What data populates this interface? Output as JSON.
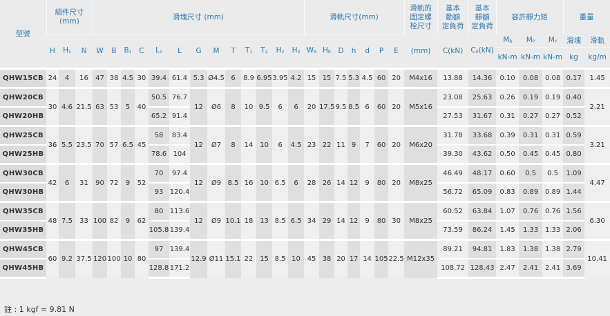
{
  "header": {
    "model": "型號",
    "assembly": "組件尺寸\n(mm)",
    "block": "滑塊尺寸 (mm)",
    "rail": "滑軌尺寸(mm)",
    "bolt": "滑軌的\n固定螺\n栓尺寸",
    "dyn": "基本\n動額\n定負荷",
    "stat": "基本\n靜額\n定負荷",
    "moment": "容許靜力矩",
    "weight": "重量",
    "bolt_unit": "(mm)",
    "dyn_unit": "C(kN)",
    "stat_unit_base": "C",
    "stat_unit_sub": "0",
    "stat_unit_tail": "(kN)",
    "moment_cols": [
      {
        "b": "M",
        "s": "R"
      },
      {
        "b": "M",
        "s": "P"
      },
      {
        "b": "M",
        "s": "Y"
      }
    ],
    "moment_unit": "kN-m",
    "weight_cols": [
      "滑塊",
      "滑軌"
    ],
    "weight_units": [
      "kg",
      "kg/m"
    ],
    "assembly_cols": [
      {
        "b": "H",
        "s": ""
      },
      {
        "b": "H",
        "s": "1"
      },
      {
        "b": "N",
        "s": ""
      }
    ],
    "block_cols": [
      {
        "b": "W",
        "s": ""
      },
      {
        "b": "B",
        "s": ""
      },
      {
        "b": "B",
        "s": "1"
      },
      {
        "b": "C",
        "s": ""
      },
      {
        "b": "L",
        "s": "1"
      },
      {
        "b": "L",
        "s": ""
      },
      {
        "b": "G",
        "s": ""
      },
      {
        "b": "M",
        "s": ""
      },
      {
        "b": "T",
        "s": ""
      },
      {
        "b": "T",
        "s": "1"
      },
      {
        "b": "T",
        "s": "2"
      },
      {
        "b": "H",
        "s": "2"
      },
      {
        "b": "H",
        "s": "3"
      }
    ],
    "rail_cols": [
      {
        "b": "W",
        "s": "R"
      },
      {
        "b": "H",
        "s": "R"
      },
      {
        "b": "D",
        "s": ""
      },
      {
        "b": "h",
        "s": ""
      },
      {
        "b": "d",
        "s": ""
      },
      {
        "b": "P",
        "s": ""
      },
      {
        "b": "E",
        "s": ""
      }
    ]
  },
  "groups": [
    {
      "shared": {
        "H": "24",
        "H1": "4",
        "N": "16",
        "W": "47",
        "B": "38",
        "B1": "4.5",
        "C": "30",
        "G": "5.3",
        "M": "Ø4.5",
        "T": "6",
        "T1": "8.9",
        "T2": "6.95",
        "H2": "3.95",
        "H3": "4.2",
        "WR": "15",
        "HR": "15",
        "D": "7.5",
        "h": "5.3",
        "d": "4.5",
        "P": "60",
        "E": "20",
        "bolt": "M4x16",
        "rail_kg": "1.45"
      },
      "rows": [
        {
          "model": "QHW15CB",
          "L1": "39.4",
          "L": "61.4",
          "Cdyn": "13.88",
          "C0": "14.36",
          "MR": "0.10",
          "MP": "0.08",
          "MY": "0.08",
          "block_kg": "0.17"
        }
      ]
    },
    {
      "shared": {
        "H": "30",
        "H1": "4.6",
        "N": "21.5",
        "W": "63",
        "B": "53",
        "B1": "5",
        "C": "40",
        "G": "12",
        "M": "Ø6",
        "T": "8",
        "T1": "10",
        "T2": "9.5",
        "H2": "6",
        "H3": "6",
        "WR": "20",
        "HR": "17.5",
        "D": "9.5",
        "h": "8.5",
        "d": "6",
        "P": "60",
        "E": "20",
        "bolt": "M5x16",
        "rail_kg": "2.21"
      },
      "rows": [
        {
          "model": "QHW20CB",
          "L1": "50.5",
          "L": "76.7",
          "Cdyn": "23.08",
          "C0": "25.63",
          "MR": "0.26",
          "MP": "0.19",
          "MY": "0.19",
          "block_kg": "0.40"
        },
        {
          "model": "QHW20HB",
          "L1": "65.2",
          "L": "91.4",
          "Cdyn": "27.53",
          "C0": "31.67",
          "MR": "0.31",
          "MP": "0.27",
          "MY": "0.27",
          "block_kg": "0.52"
        }
      ]
    },
    {
      "shared": {
        "H": "36",
        "H1": "5.5",
        "N": "23.5",
        "W": "70",
        "B": "57",
        "B1": "6.5",
        "C": "45",
        "G": "12",
        "M": "Ø7",
        "T": "8",
        "T1": "14",
        "T2": "10",
        "H2": "6",
        "H3": "4.5",
        "WR": "23",
        "HR": "22",
        "D": "11",
        "h": "9",
        "d": "7",
        "P": "60",
        "E": "20",
        "bolt": "M6x20",
        "rail_kg": "3.21"
      },
      "rows": [
        {
          "model": "QHW25CB",
          "L1": "58",
          "L": "83.4",
          "Cdyn": "31.78",
          "C0": "33.68",
          "MR": "0.39",
          "MP": "0.31",
          "MY": "0.31",
          "block_kg": "0.59"
        },
        {
          "model": "QHW25HB",
          "L1": "78.6",
          "L": "104",
          "Cdyn": "39.30",
          "C0": "43.62",
          "MR": "0.50",
          "MP": "0.45",
          "MY": "0.45",
          "block_kg": "0.80"
        }
      ]
    },
    {
      "shared": {
        "H": "42",
        "H1": "6",
        "N": "31",
        "W": "90",
        "B": "72",
        "B1": "9",
        "C": "52",
        "G": "12",
        "M": "Ø9",
        "T": "8.5",
        "T1": "16",
        "T2": "10",
        "H2": "6.5",
        "H3": "6",
        "WR": "28",
        "HR": "26",
        "D": "14",
        "h": "12",
        "d": "9",
        "P": "80",
        "E": "20",
        "bolt": "M8x25",
        "rail_kg": "4.47"
      },
      "rows": [
        {
          "model": "QHW30CB",
          "L1": "70",
          "L": "97.4",
          "Cdyn": "46.49",
          "C0": "48.17",
          "MR": "0.60",
          "MP": "0.5",
          "MY": "0.5",
          "block_kg": "1.09"
        },
        {
          "model": "QHW30HB",
          "L1": "93",
          "L": "120.4",
          "Cdyn": "56.72",
          "C0": "65.09",
          "MR": "0.83",
          "MP": "0.89",
          "MY": "0.89",
          "block_kg": "1.44"
        }
      ]
    },
    {
      "shared": {
        "H": "48",
        "H1": "7.5",
        "N": "33",
        "W": "100",
        "B": "82",
        "B1": "9",
        "C": "62",
        "G": "12",
        "M": "Ø9",
        "T": "10.1",
        "T1": "18",
        "T2": "13",
        "H2": "8.5",
        "H3": "6.5",
        "WR": "34",
        "HR": "29",
        "D": "14",
        "h": "12",
        "d": "9",
        "P": "80",
        "E": "30",
        "bolt": "M8x25",
        "rail_kg": "6.30"
      },
      "rows": [
        {
          "model": "QHW35CB",
          "L1": "80",
          "L": "113.6",
          "Cdyn": "60.52",
          "C0": "63.84",
          "MR": "1.07",
          "MP": "0.76",
          "MY": "0.76",
          "block_kg": "1.56"
        },
        {
          "model": "QHW35HB",
          "L1": "105.8",
          "L": "139.4",
          "Cdyn": "73.59",
          "C0": "86.24",
          "MR": "1.45",
          "MP": "1.33",
          "MY": "1.33",
          "block_kg": "2.06"
        }
      ]
    },
    {
      "shared": {
        "H": "60",
        "H1": "9.2",
        "N": "37.5",
        "W": "120",
        "B": "100",
        "B1": "10",
        "C": "80",
        "G": "12.9",
        "M": "Ø11",
        "T": "15.1",
        "T1": "22",
        "T2": "15",
        "H2": "8.5",
        "H3": "10",
        "WR": "45",
        "HR": "38",
        "D": "20",
        "h": "17",
        "d": "14",
        "P": "105",
        "E": "22.5",
        "bolt": "M12x35",
        "rail_kg": "10.41"
      },
      "rows": [
        {
          "model": "QHW45CB",
          "L1": "97",
          "L": "139.4",
          "Cdyn": "89.21",
          "C0": "94.81",
          "MR": "1.83",
          "MP": "1.38",
          "MY": "1.38",
          "block_kg": "2.79"
        },
        {
          "model": "QHW45HB",
          "L1": "128.8",
          "L": "171.2",
          "Cdyn": "108.72",
          "C0": "128.43",
          "MR": "2.47",
          "MP": "2.41",
          "MY": "2.41",
          "block_kg": "3.69"
        }
      ]
    }
  ],
  "note": "註 : 1 kgf = 9.81 N",
  "colors": {
    "header_text": "#2a7ab8",
    "background": "#ececec",
    "shade_dark": "#dfdfdf",
    "shade_light": "#efefef"
  }
}
